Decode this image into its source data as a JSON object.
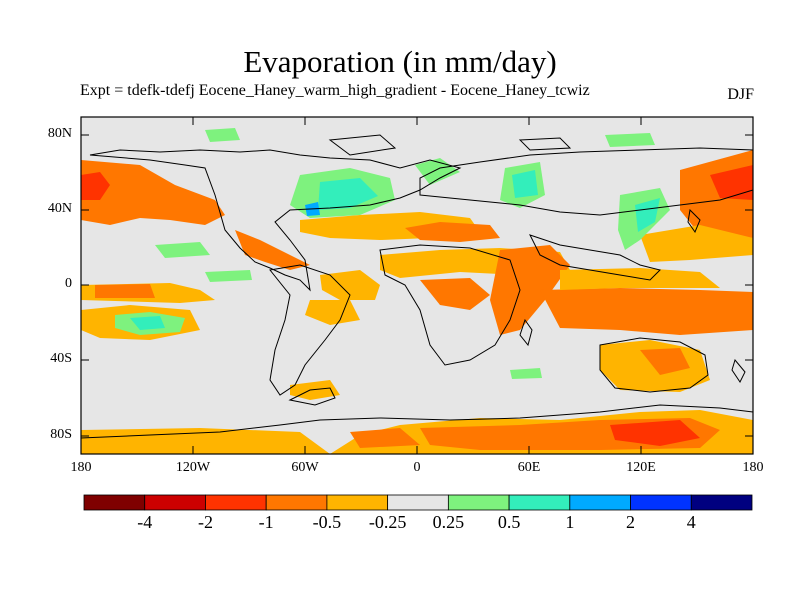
{
  "title": "Evaporation (in mm/day)",
  "subtitle": "Expt = tdefk-tdefj Eocene_Haney_warm_high_gradient - Eocene_Haney_tcwiz",
  "season": "DJF",
  "lat_ticks": [
    "80N",
    "40N",
    "0",
    "40S",
    "80S"
  ],
  "lon_ticks": [
    "180",
    "120W",
    "60W",
    "0",
    "60E",
    "120E",
    "180"
  ],
  "colorbar": {
    "labels": [
      "-4",
      "-2",
      "-1",
      "-0.5",
      "-0.25",
      "0.25",
      "0.5",
      "1",
      "2",
      "4"
    ],
    "colors": [
      "#7f0000",
      "#cc0000",
      "#ff3300",
      "#ff7700",
      "#ffb400",
      "#e6e6e6",
      "#7ef27e",
      "#33eebb",
      "#00aaff",
      "#0033ff",
      "#000080"
    ]
  },
  "palette": {
    "ocean": "#e6e6e6",
    "strong_orange": "#ff7700",
    "light_orange": "#ffb400",
    "red": "#ff3300",
    "green": "#7ef27e",
    "cyan": "#33eebb",
    "blue": "#00aaff"
  }
}
